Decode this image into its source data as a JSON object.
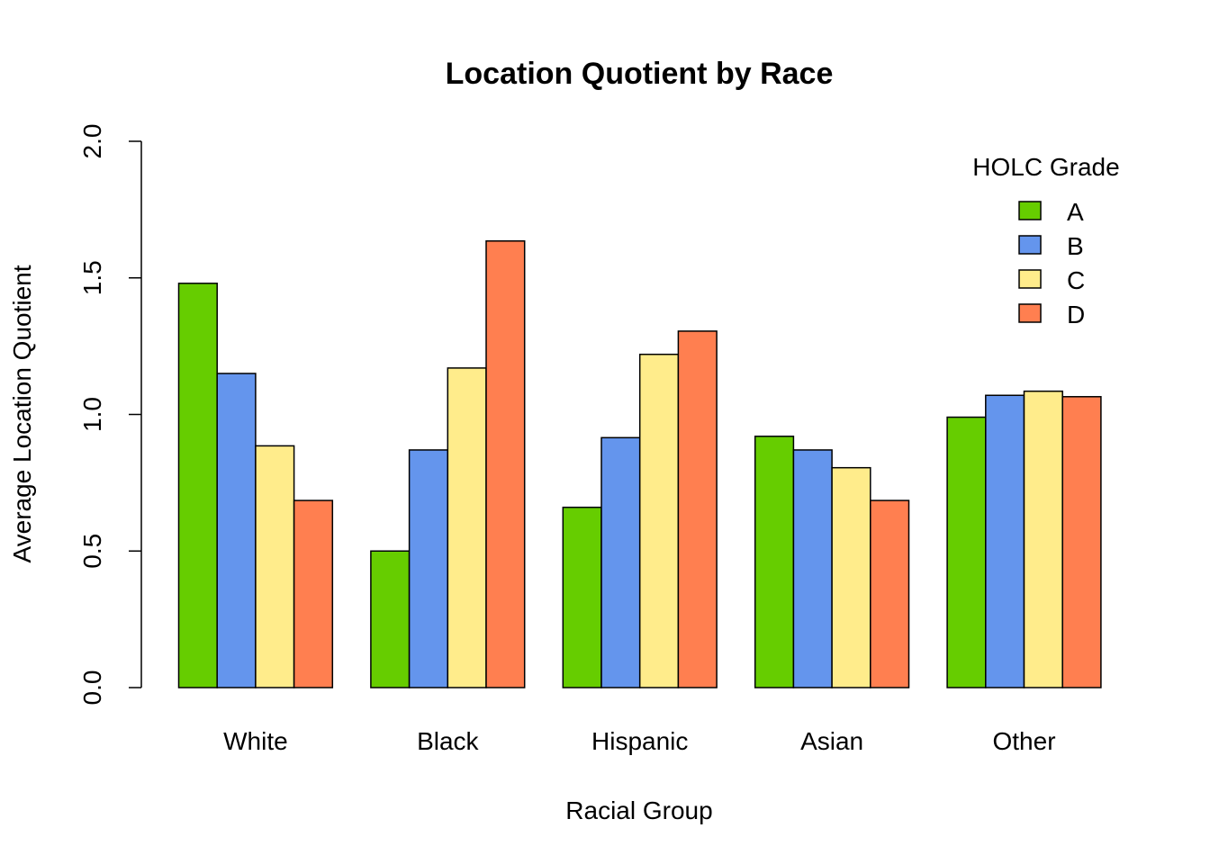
{
  "chart_data": {
    "type": "bar",
    "title": "Location Quotient by Race",
    "xlabel": "Racial Group",
    "ylabel": "Average Location Quotient",
    "categories": [
      "White",
      "Black",
      "Hispanic",
      "Asian",
      "Other"
    ],
    "ylim": [
      0,
      2
    ],
    "yticks": [
      "0.0",
      "0.5",
      "1.0",
      "1.5",
      "2.0"
    ],
    "grid": false,
    "legend": {
      "title": "HOLC Grade",
      "position": "top-right"
    },
    "series": [
      {
        "name": "A",
        "color": "#66cd00",
        "values": [
          1.48,
          0.5,
          0.66,
          0.92,
          0.99
        ]
      },
      {
        "name": "B",
        "color": "#6495ed",
        "values": [
          1.15,
          0.87,
          0.915,
          0.87,
          1.07
        ]
      },
      {
        "name": "C",
        "color": "#ffec8b",
        "values": [
          0.885,
          1.17,
          1.22,
          0.805,
          1.085
        ]
      },
      {
        "name": "D",
        "color": "#ff7f50",
        "values": [
          0.685,
          1.635,
          1.305,
          0.685,
          1.065
        ]
      }
    ]
  }
}
